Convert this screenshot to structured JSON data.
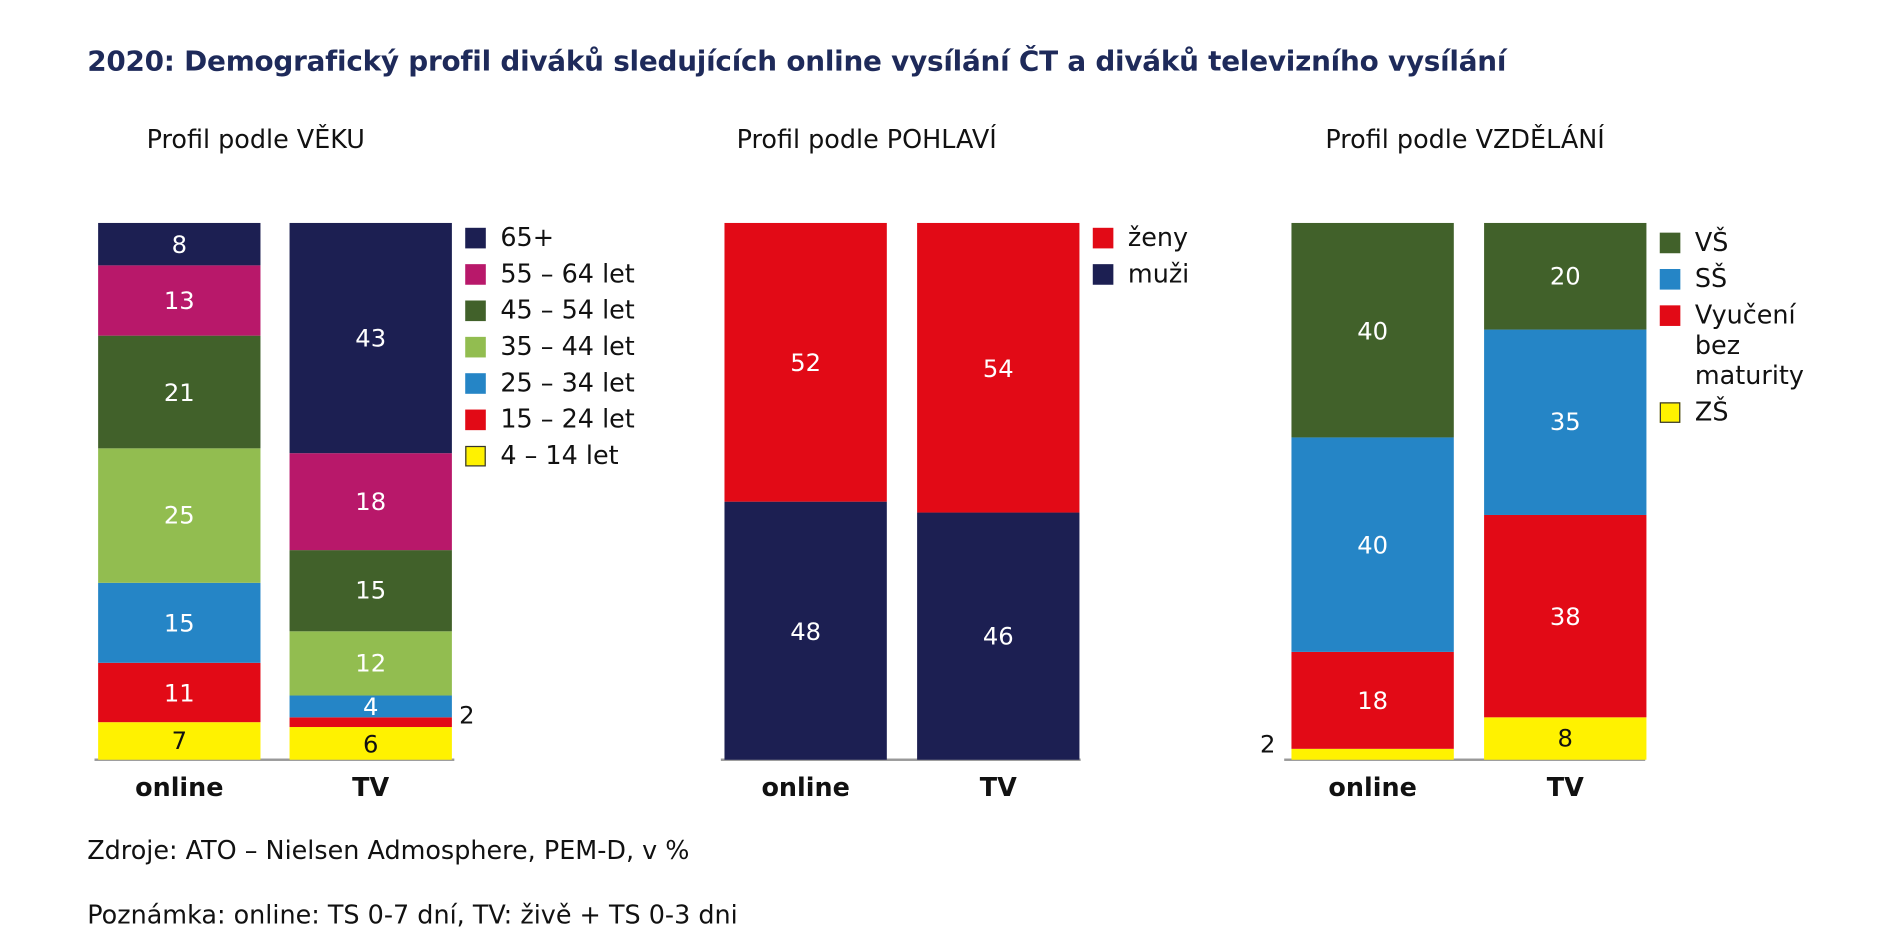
{
  "title": "2020: Demografický profil diváků sledujících online vysílání ČT a diváků televizního vysílání",
  "source": "Zdroje: ATO – Nielsen Admosphere, PEM-D, v %",
  "note": "Poznámka: online: TS 0-7 dní, TV: živě + TS 0-3 dni",
  "chart_data": [
    {
      "type": "bar",
      "stacked": true,
      "title": "Profil podle VĚKU",
      "categories": [
        "online",
        "TV"
      ],
      "legend": "right",
      "series": [
        {
          "name": "4 – 14 let",
          "color": "#fff200",
          "values": [
            7,
            6
          ]
        },
        {
          "name": "15 – 24 let",
          "color": "#e20a16",
          "values": [
            11,
            2
          ]
        },
        {
          "name": "25 – 34 let",
          "color": "#2585c6",
          "values": [
            15,
            4
          ]
        },
        {
          "name": "35 – 44 let",
          "color": "#92bd50",
          "values": [
            25,
            12
          ]
        },
        {
          "name": "45 – 54 let",
          "color": "#41612a",
          "values": [
            21,
            15
          ]
        },
        {
          "name": "55 – 64 let",
          "color": "#b8186a",
          "values": [
            13,
            18
          ]
        },
        {
          "name": "65+",
          "color": "#1c1f52",
          "values": [
            8,
            43
          ]
        }
      ]
    },
    {
      "type": "bar",
      "stacked": true,
      "title": "Profil podle POHLAVÍ",
      "categories": [
        "online",
        "TV"
      ],
      "legend": "right",
      "series": [
        {
          "name": "muži",
          "color": "#1c1f52",
          "values": [
            48,
            46
          ]
        },
        {
          "name": "ženy",
          "color": "#e20a16",
          "values": [
            52,
            54
          ]
        }
      ]
    },
    {
      "type": "bar",
      "stacked": true,
      "title": "Profil podle VZDĚLÁNÍ",
      "categories": [
        "online",
        "TV"
      ],
      "legend": "right",
      "series": [
        {
          "name": "ZŠ",
          "color": "#fff200",
          "values": [
            2,
            8
          ]
        },
        {
          "name": "Vyučení bez maturity",
          "color": "#e20a16",
          "values": [
            18,
            38
          ]
        },
        {
          "name": "SŠ",
          "color": "#2585c6",
          "values": [
            40,
            35
          ]
        },
        {
          "name": "VŠ",
          "color": "#41612a",
          "values": [
            40,
            20
          ]
        }
      ]
    }
  ]
}
